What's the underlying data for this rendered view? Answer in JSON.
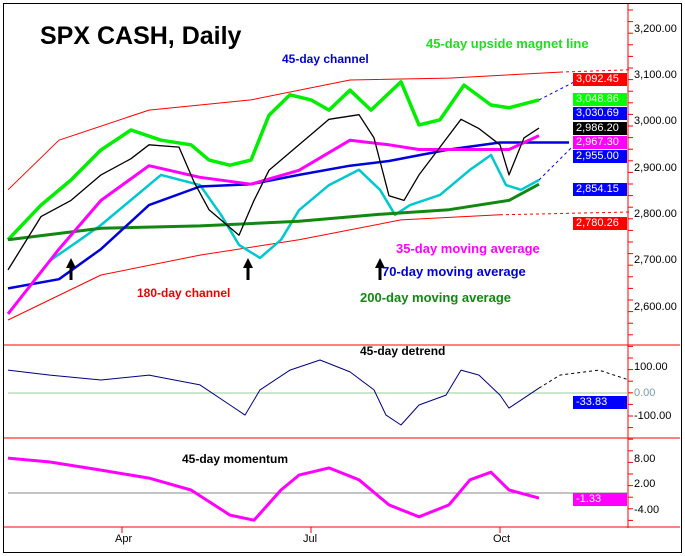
{
  "chart_data": {
    "type": "line",
    "title": "SPX CASH, Daily",
    "x_ticks": [
      {
        "label": "Apr",
        "idx": 38
      },
      {
        "label": "Jul",
        "idx": 101
      },
      {
        "label": "Oct",
        "idx": 164
      }
    ],
    "panels": {
      "price": {
        "yticks": [
          "3,200.00",
          "3,100.00",
          "3,000.00",
          "2,900.00",
          "2,800.00",
          "2,700.00",
          "2,600.00"
        ],
        "ylim": [
          2560,
          3250
        ]
      },
      "detrend": {
        "title": "45-day detrend",
        "yticks": [
          "100.00",
          "0.00",
          "-100.00"
        ]
      },
      "momentum": {
        "title": "45-day momentum",
        "yticks": [
          "8.00",
          "2.00",
          "-4.00"
        ]
      }
    },
    "annotations": {
      "channel45": "45-day channel",
      "magnet": "45-day upside magnet line",
      "ma35": "35-day moving average",
      "ma70": "70-day moving average",
      "channel180": "180-day channel",
      "ma200": "200-day moving average"
    },
    "badges": [
      {
        "text": "3,092.45",
        "color": "#ff0000",
        "value": 3092.45
      },
      {
        "text": "3,048.86",
        "color": "#00ff00",
        "value": 3048.86
      },
      {
        "text": "3,030.69",
        "color": "#0000ff",
        "value": 3030.69
      },
      {
        "text": "2,986.20",
        "color": "#000000",
        "value": 2986.2
      },
      {
        "text": "2,967.30",
        "color": "#ff00ff",
        "value": 2967.3
      },
      {
        "text": "2,955.00",
        "color": "#0000ff",
        "value": 2955.0
      },
      {
        "text": "2,854.15",
        "color": "#0000ff",
        "value": 2854.15
      },
      {
        "text": "2,780.26",
        "color": "#ff0000",
        "value": 2780.26
      },
      {
        "text": "-33.83",
        "color": "#0000ff",
        "value": -33.83
      },
      {
        "text": "-1.33",
        "color": "#ff00ff",
        "value": -1.33
      }
    ],
    "series": [
      {
        "name": "180-day channel upper",
        "panel": "price",
        "color": "#ff0000",
        "width": 1,
        "points": [
          [
            0,
            2853
          ],
          [
            17,
            2960
          ],
          [
            47,
            3025
          ],
          [
            81,
            3047
          ],
          [
            114,
            3090
          ],
          [
            147,
            3094
          ],
          [
            184,
            3107
          ]
        ],
        "proj": [
          [
            184,
            3107
          ],
          [
            207,
            3112
          ]
        ]
      },
      {
        "name": "180-day channel lower",
        "panel": "price",
        "color": "#ff0000",
        "width": 1,
        "points": [
          [
            0,
            2572
          ],
          [
            31,
            2669
          ],
          [
            64,
            2712
          ],
          [
            97,
            2745
          ],
          [
            131,
            2788
          ],
          [
            164,
            2799
          ]
        ],
        "proj": [
          [
            164,
            2799
          ],
          [
            207,
            2805
          ]
        ]
      },
      {
        "name": "45-day channel upper",
        "panel": "price",
        "color": "#00ee00",
        "width": 3.5,
        "points": [
          [
            0,
            2745
          ],
          [
            11,
            2820
          ],
          [
            21,
            2874
          ],
          [
            31,
            2939
          ],
          [
            41,
            2982
          ],
          [
            51,
            2960
          ],
          [
            61,
            2950
          ],
          [
            67,
            2917
          ],
          [
            74,
            2906
          ],
          [
            81,
            2917
          ],
          [
            87,
            3014
          ],
          [
            94,
            3058
          ],
          [
            101,
            3047
          ],
          [
            107,
            3025
          ],
          [
            114,
            3068
          ],
          [
            121,
            3025
          ],
          [
            131,
            3086
          ],
          [
            137,
            2993
          ],
          [
            144,
            3004
          ],
          [
            152,
            3079
          ],
          [
            161,
            3036
          ],
          [
            167,
            3030
          ],
          [
            177,
            3047
          ]
        ],
        "proj": [
          [
            177,
            3047
          ],
          [
            190,
            3090
          ]
        ]
      },
      {
        "name": "45-day channel lower",
        "panel": "price",
        "color": "#00c8d0",
        "width": 2.5,
        "points": [
          [
            14,
            2700
          ],
          [
            24,
            2745
          ],
          [
            31,
            2777
          ],
          [
            41,
            2831
          ],
          [
            51,
            2885
          ],
          [
            64,
            2863
          ],
          [
            71,
            2799
          ],
          [
            77,
            2734
          ],
          [
            84,
            2706
          ],
          [
            91,
            2745
          ],
          [
            97,
            2809
          ],
          [
            107,
            2863
          ],
          [
            117,
            2896
          ],
          [
            124,
            2853
          ],
          [
            129,
            2799
          ],
          [
            134,
            2820
          ],
          [
            144,
            2842
          ],
          [
            154,
            2896
          ],
          [
            161,
            2928
          ],
          [
            166,
            2863
          ],
          [
            171,
            2853
          ],
          [
            177,
            2874
          ]
        ],
        "proj": [
          [
            177,
            2874
          ],
          [
            188,
            2945
          ]
        ]
      },
      {
        "name": "200-day moving average",
        "panel": "price",
        "color": "#118811",
        "width": 3,
        "points": [
          [
            0,
            2745
          ],
          [
            31,
            2770
          ],
          [
            64,
            2775
          ],
          [
            97,
            2785
          ],
          [
            124,
            2800
          ],
          [
            147,
            2810
          ],
          [
            167,
            2830
          ],
          [
            177,
            2865
          ]
        ]
      },
      {
        "name": "70-day moving average",
        "panel": "price",
        "color": "#0000dd",
        "width": 2.5,
        "points": [
          [
            0,
            2640
          ],
          [
            17,
            2660
          ],
          [
            31,
            2725
          ],
          [
            47,
            2820
          ],
          [
            64,
            2860
          ],
          [
            81,
            2865
          ],
          [
            97,
            2885
          ],
          [
            114,
            2905
          ],
          [
            127,
            2915
          ],
          [
            147,
            2940
          ],
          [
            164,
            2955
          ],
          [
            187,
            2955
          ]
        ]
      },
      {
        "name": "35-day moving average",
        "panel": "price",
        "color": "#ff00ff",
        "width": 3,
        "points": [
          [
            0,
            2585
          ],
          [
            17,
            2725
          ],
          [
            31,
            2830
          ],
          [
            47,
            2905
          ],
          [
            64,
            2880
          ],
          [
            81,
            2865
          ],
          [
            97,
            2895
          ],
          [
            114,
            2960
          ],
          [
            127,
            2950
          ],
          [
            137,
            2940
          ],
          [
            151,
            2940
          ],
          [
            167,
            2940
          ],
          [
            177,
            2970
          ]
        ]
      },
      {
        "name": "SPX close",
        "panel": "price",
        "color": "#000000",
        "width": 1.3,
        "points": [
          [
            0,
            2680
          ],
          [
            11,
            2795
          ],
          [
            21,
            2830
          ],
          [
            31,
            2885
          ],
          [
            41,
            2920
          ],
          [
            47,
            2950
          ],
          [
            57,
            2945
          ],
          [
            62,
            2870
          ],
          [
            67,
            2810
          ],
          [
            77,
            2755
          ],
          [
            82,
            2830
          ],
          [
            87,
            2895
          ],
          [
            97,
            2950
          ],
          [
            107,
            3005
          ],
          [
            117,
            3015
          ],
          [
            122,
            2965
          ],
          [
            127,
            2840
          ],
          [
            132,
            2830
          ],
          [
            137,
            2885
          ],
          [
            144,
            2945
          ],
          [
            151,
            3005
          ],
          [
            157,
            2985
          ],
          [
            164,
            2950
          ],
          [
            167,
            2885
          ],
          [
            172,
            2965
          ],
          [
            177,
            2986
          ]
        ]
      },
      {
        "name": "45-day detrend",
        "panel": "detrend",
        "color": "#000080",
        "width": 1,
        "points": [
          [
            0,
            88
          ],
          [
            14,
            69
          ],
          [
            31,
            50
          ],
          [
            47,
            69
          ],
          [
            64,
            31
          ],
          [
            74,
            -46
          ],
          [
            79,
            -85
          ],
          [
            84,
            12
          ],
          [
            94,
            88
          ],
          [
            104,
            127
          ],
          [
            114,
            81
          ],
          [
            122,
            12
          ],
          [
            126,
            -85
          ],
          [
            131,
            -123
          ],
          [
            137,
            -46
          ],
          [
            146,
            -8
          ],
          [
            151,
            88
          ],
          [
            157,
            69
          ],
          [
            164,
            -8
          ],
          [
            167,
            -58
          ],
          [
            177,
            19
          ]
        ],
        "proj": [
          [
            177,
            19
          ],
          [
            184,
            69
          ],
          [
            197,
            88
          ],
          [
            207,
            50
          ]
        ]
      },
      {
        "name": "45-day momentum",
        "panel": "momentum",
        "color": "#ff00ff",
        "width": 3,
        "points": [
          [
            0,
            8.2
          ],
          [
            14,
            7.3
          ],
          [
            31,
            5.4
          ],
          [
            47,
            3.5
          ],
          [
            61,
            0.7
          ],
          [
            74,
            -5.2
          ],
          [
            82,
            -6.4
          ],
          [
            91,
            0.7
          ],
          [
            97,
            4.2
          ],
          [
            107,
            5.9
          ],
          [
            117,
            3.1
          ],
          [
            127,
            -2.8
          ],
          [
            137,
            -5.6
          ],
          [
            147,
            -2.8
          ],
          [
            154,
            3.1
          ],
          [
            161,
            4.9
          ],
          [
            167,
            0.7
          ],
          [
            177,
            -1.2
          ]
        ]
      }
    ],
    "arrows_idx": [
      21,
      80,
      124
    ]
  }
}
